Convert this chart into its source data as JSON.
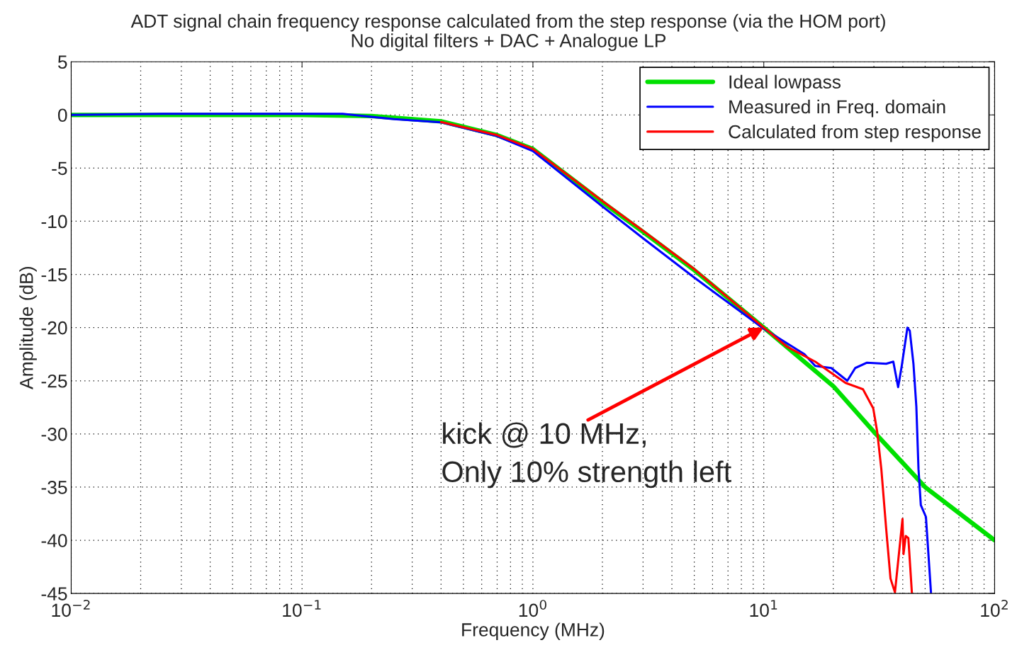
{
  "chart_data": {
    "type": "line",
    "title": "ADT signal chain frequency response calculated from the step response (via the HOM port)",
    "subtitle": "No digital filters + DAC + Analogue LP",
    "xlabel": "Frequency (MHz)",
    "ylabel": "Amplitude (dB)",
    "log": "x",
    "xlim": [
      0.01,
      100
    ],
    "ylim": [
      -45,
      5
    ],
    "xticks": [
      {
        "value": 0.01,
        "label": "10$^{−2}$"
      },
      {
        "value": 0.1,
        "label": "10$^{−1}$"
      },
      {
        "value": 1,
        "label": "10$^{0}$"
      },
      {
        "value": 10,
        "label": "10$^{1}$"
      },
      {
        "value": 100,
        "label": "10$^{2}$"
      }
    ],
    "yticks": [
      -45,
      -40,
      -35,
      -30,
      -25,
      -20,
      -15,
      -10,
      -5,
      0,
      5
    ],
    "grid": true,
    "legend": "top right",
    "line_style": "solid",
    "marker": "none",
    "series": [
      {
        "name": "Ideal lowpass",
        "color": "#00e000",
        "x": [
          0.01,
          0.1,
          0.2,
          0.4,
          0.7,
          1,
          2,
          3,
          5,
          10,
          20,
          30,
          50,
          100
        ],
        "values": [
          0,
          0,
          -0.1,
          -0.6,
          -1.9,
          -3.2,
          -8.2,
          -11,
          -14.6,
          -20,
          -25.5,
          -29.8,
          -35,
          -40
        ]
      },
      {
        "name": "Measured in Freq. domain",
        "color": "#0000ff",
        "x": [
          0.01,
          0.025,
          0.15,
          0.25,
          0.4,
          0.7,
          1,
          2,
          3,
          5,
          10,
          15,
          16.7,
          19.6,
          23,
          24.9,
          28,
          33.9,
          36.4,
          38.2,
          39.6,
          41.9,
          42.9,
          44.5,
          45.8,
          46.8,
          47.9,
          50.4,
          53
        ],
        "values": [
          0,
          0.1,
          0.1,
          -0.4,
          -0.7,
          -2.0,
          -3.4,
          -8.6,
          -11.6,
          -15.3,
          -20.1,
          -22.5,
          -23.6,
          -23.8,
          -25.0,
          -23.8,
          -23.3,
          -23.4,
          -23.2,
          -25.6,
          -23.6,
          -20.0,
          -20.3,
          -23.4,
          -27.4,
          -33.3,
          -36.7,
          -37.8,
          -44.9
        ]
      },
      {
        "name": "Calculated from step response",
        "color": "#ff0000",
        "x": [
          0.4,
          0.7,
          1,
          2,
          3,
          5,
          10,
          12.6,
          16.7,
          22.6,
          26.9,
          29.8,
          31,
          32.3,
          33.9,
          35.4,
          37,
          39.9,
          40.3,
          41.2,
          42.3,
          43.8
        ],
        "values": [
          -0.66,
          -1.9,
          -3.2,
          -8.1,
          -10.9,
          -14.5,
          -20,
          -21.8,
          -23.2,
          -25.2,
          -25.8,
          -27.6,
          -29.8,
          -33.3,
          -38.9,
          -43.6,
          -44.9,
          -38.0,
          -41.3,
          -39.6,
          -39.8,
          -44.9
        ]
      }
    ],
    "annotations": [
      {
        "text": "kick @ 10 MHz,\nOnly 10% strength left",
        "x": 10,
        "y": -20
      }
    ]
  }
}
